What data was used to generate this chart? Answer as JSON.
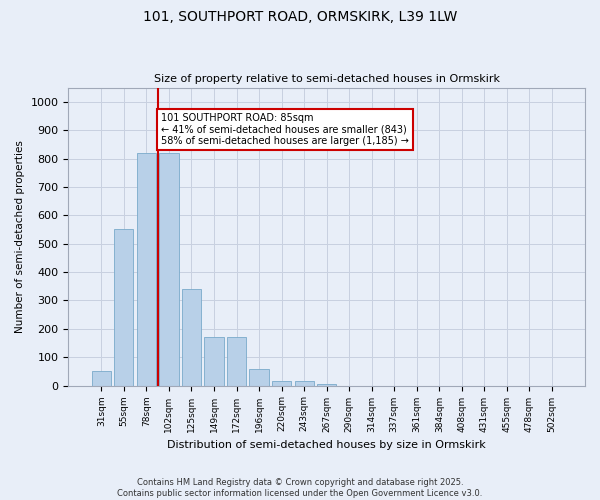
{
  "title_line1": "101, SOUTHPORT ROAD, ORMSKIRK, L39 1LW",
  "title_line2": "Size of property relative to semi-detached houses in Ormskirk",
  "xlabel": "Distribution of semi-detached houses by size in Ormskirk",
  "ylabel": "Number of semi-detached properties",
  "categories": [
    "31sqm",
    "55sqm",
    "78sqm",
    "102sqm",
    "125sqm",
    "149sqm",
    "172sqm",
    "196sqm",
    "220sqm",
    "243sqm",
    "267sqm",
    "290sqm",
    "314sqm",
    "337sqm",
    "361sqm",
    "384sqm",
    "408sqm",
    "431sqm",
    "455sqm",
    "478sqm",
    "502sqm"
  ],
  "values": [
    50,
    550,
    820,
    820,
    340,
    170,
    170,
    60,
    15,
    15,
    5,
    0,
    0,
    0,
    0,
    0,
    0,
    0,
    0,
    0,
    0
  ],
  "bar_color": "#b8d0e8",
  "bar_edge_color": "#7aaaca",
  "highlight_bar_index": 2,
  "highlight_line_color": "#cc0000",
  "annotation_title": "101 SOUTHPORT ROAD: 85sqm",
  "annotation_line1": "← 41% of semi-detached houses are smaller (843)",
  "annotation_line2": "58% of semi-detached houses are larger (1,185) →",
  "annotation_box_color": "#cc0000",
  "ylim": [
    0,
    1050
  ],
  "yticks": [
    0,
    100,
    200,
    300,
    400,
    500,
    600,
    700,
    800,
    900,
    1000
  ],
  "footer_line1": "Contains HM Land Registry data © Crown copyright and database right 2025.",
  "footer_line2": "Contains public sector information licensed under the Open Government Licence v3.0.",
  "bg_color": "#e8eef8",
  "plot_bg_color": "#e8eef8",
  "grid_color": "#c8d0e0"
}
